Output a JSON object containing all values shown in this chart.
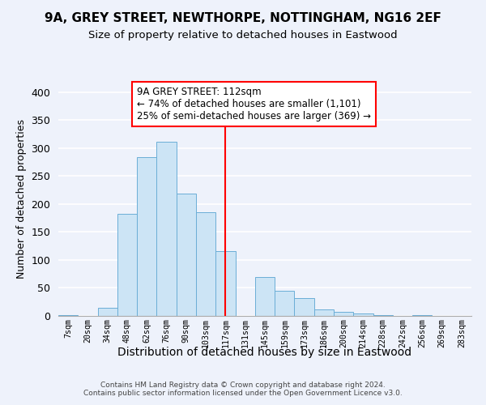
{
  "title": "9A, GREY STREET, NEWTHORPE, NOTTINGHAM, NG16 2EF",
  "subtitle": "Size of property relative to detached houses in Eastwood",
  "xlabel": "Distribution of detached houses by size in Eastwood",
  "ylabel": "Number of detached properties",
  "bin_labels": [
    "7sqm",
    "20sqm",
    "34sqm",
    "48sqm",
    "62sqm",
    "76sqm",
    "90sqm",
    "103sqm",
    "117sqm",
    "131sqm",
    "145sqm",
    "159sqm",
    "173sqm",
    "186sqm",
    "200sqm",
    "214sqm",
    "228sqm",
    "242sqm",
    "256sqm",
    "269sqm",
    "283sqm"
  ],
  "bar_heights": [
    2,
    0,
    15,
    182,
    284,
    311,
    218,
    186,
    116,
    0,
    70,
    45,
    32,
    12,
    7,
    5,
    2,
    0,
    1,
    0,
    0
  ],
  "bar_color": "#cce4f5",
  "bar_edge_color": "#6baed6",
  "vline_x_index": 8,
  "vline_color": "red",
  "annotation_text": "9A GREY STREET: 112sqm\n← 74% of detached houses are smaller (1,101)\n25% of semi-detached houses are larger (369) →",
  "annotation_box_color": "white",
  "annotation_box_edge_color": "red",
  "ylim": [
    0,
    420
  ],
  "yticks": [
    0,
    50,
    100,
    150,
    200,
    250,
    300,
    350,
    400
  ],
  "footnote": "Contains HM Land Registry data © Crown copyright and database right 2024.\nContains public sector information licensed under the Open Government Licence v3.0.",
  "bg_color": "#eef2fb"
}
